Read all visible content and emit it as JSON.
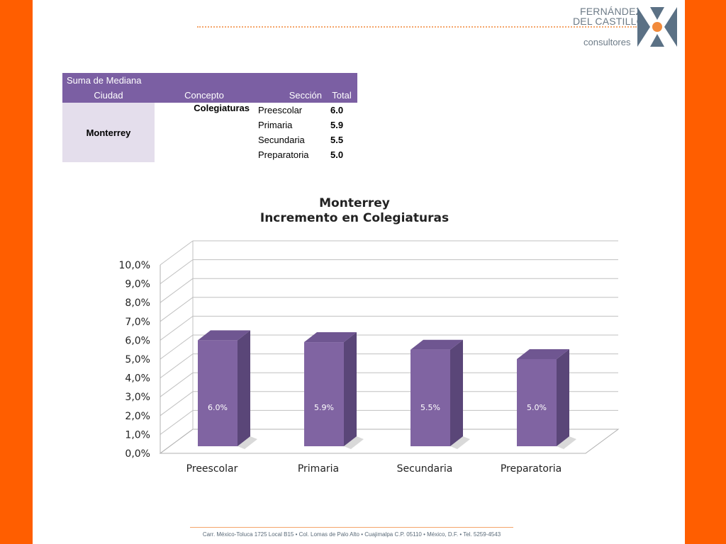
{
  "logo": {
    "line1": "FERNÁNDEZ",
    "line2": "DEL CASTILLO",
    "sub": "consultores",
    "colors": {
      "text": "#6d7b87",
      "slate": "#5b7185",
      "accent": "#f28a3a"
    }
  },
  "table": {
    "header_top": "Suma de Mediana",
    "headers": [
      "Ciudad",
      "Concepto",
      "Sección",
      "Total"
    ],
    "city": "Monterrey",
    "concept": "Colegiaturas",
    "rows": [
      {
        "section": "Preescolar",
        "total": "6.0"
      },
      {
        "section": "Primaria",
        "total": "5.9"
      },
      {
        "section": "Secundaria",
        "total": "5.5"
      },
      {
        "section": "Preparatoria",
        "total": "5.0"
      }
    ]
  },
  "chart_data": {
    "type": "bar",
    "title": "Monterrey",
    "subtitle": "Incremento en Colegiaturas",
    "categories": [
      "Preescolar",
      "Primaria",
      "Secundaria",
      "Preparatoria"
    ],
    "values": [
      6.0,
      5.9,
      5.5,
      5.0
    ],
    "data_labels": [
      "6.0%",
      "5.9%",
      "5.5%",
      "5.0%"
    ],
    "ylim": [
      0,
      10
    ],
    "yticks": [
      "0,0%",
      "1,0%",
      "2,0%",
      "3,0%",
      "4,0%",
      "5,0%",
      "6,0%",
      "7,0%",
      "8,0%",
      "9,0%",
      "10,0%"
    ],
    "grid": true,
    "legend": "none",
    "style": "3d-column",
    "colors": {
      "front": "#8064a2",
      "side": "#5a4678",
      "top": "#6f5691"
    }
  },
  "footer": "Carr. México-Toluca 1725 Local B15 • Col. Lomas de Palo Alto • Cuajimalpa C.P. 05110 • México, D.F. • Tel. 5259-4543"
}
